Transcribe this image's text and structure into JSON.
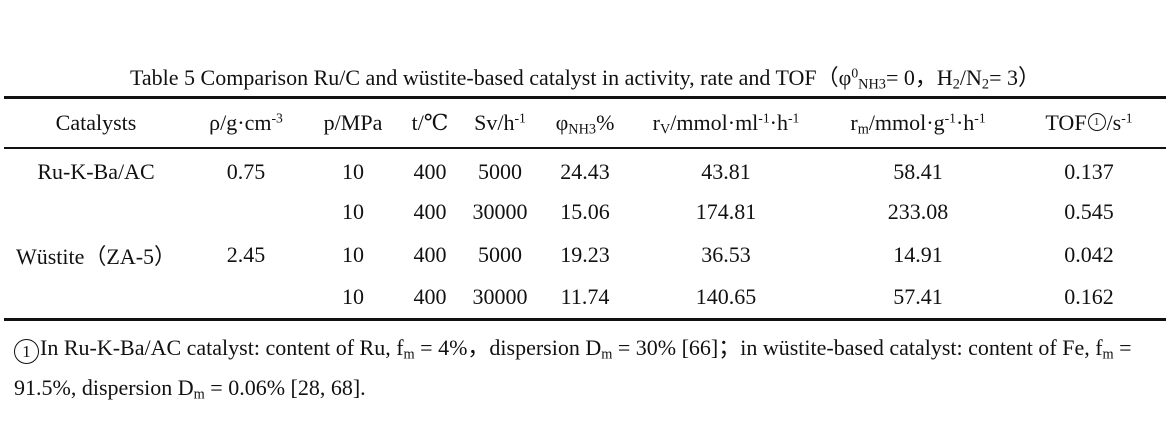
{
  "caption": {
    "label": "Table 5 Comparison Ru/C and wüstite-based catalyst in activity, rate and TOF（φ",
    "sup_0": "0",
    "sub_nh3": "NH3",
    "mid": "= 0，H",
    "sub_2a": "2",
    "slash_n": "/N",
    "sub_2b": "2",
    "tail": "= 3）"
  },
  "headers": {
    "catalysts": "Catalysts",
    "rho_main": "ρ/g·cm",
    "rho_sup": "-3",
    "p": "p/MPa",
    "t": "t/℃",
    "sv_main": "Sv/h",
    "sv_sup": "-1",
    "phi_main": "φ",
    "phi_sub": "NH3",
    "phi_unit": "%",
    "rv_r": "r",
    "rv_sub": "V",
    "rv_unit": "/mmol·ml",
    "rv_sup1": "-1",
    "rv_h": "·h",
    "rv_sup2": "-1",
    "rm_r": "r",
    "rm_sub": "m",
    "rm_unit": "/mmol·g",
    "rm_sup1": "-1",
    "rm_h": "·h",
    "rm_sup2": "-1",
    "tof_main": "TOF",
    "tof_mark": "1",
    "tof_unit": "/s",
    "tof_sup": "-1"
  },
  "rows": [
    {
      "catalyst": "Ru-K-Ba/AC",
      "rho": "0.75",
      "p": "10",
      "t": "400",
      "sv": "5000",
      "phi": "24.43",
      "rv": "43.81",
      "rm": "58.41",
      "tof": "0.137"
    },
    {
      "catalyst": "",
      "rho": "",
      "p": "10",
      "t": "400",
      "sv": "30000",
      "phi": "15.06",
      "rv": "174.81",
      "rm": "233.08",
      "tof": "0.545"
    },
    {
      "catalyst": "Wüstite（ZA-5）",
      "rho": "2.45",
      "p": "10",
      "t": "400",
      "sv": "5000",
      "phi": "19.23",
      "rv": "36.53",
      "rm": "14.91",
      "tof": "0.042"
    },
    {
      "catalyst": "",
      "rho": "",
      "p": "10",
      "t": "400",
      "sv": "30000",
      "phi": "11.74",
      "rv": "140.65",
      "rm": "57.41",
      "tof": "0.162"
    }
  ],
  "footnote": {
    "mark": "1",
    "p1": "In Ru-K-Ba/AC catalyst: content of Ru, f",
    "s1": "m",
    "p2": " = 4%，dispersion D",
    "s2": "m",
    "p3": " = 30% [66]；in wüstite-based catalyst: content of Fe, f",
    "s3": "m",
    "p4": " = 91.5%, dispersion D",
    "s4": "m",
    "p5": " = 0.06% [28, 68]."
  }
}
